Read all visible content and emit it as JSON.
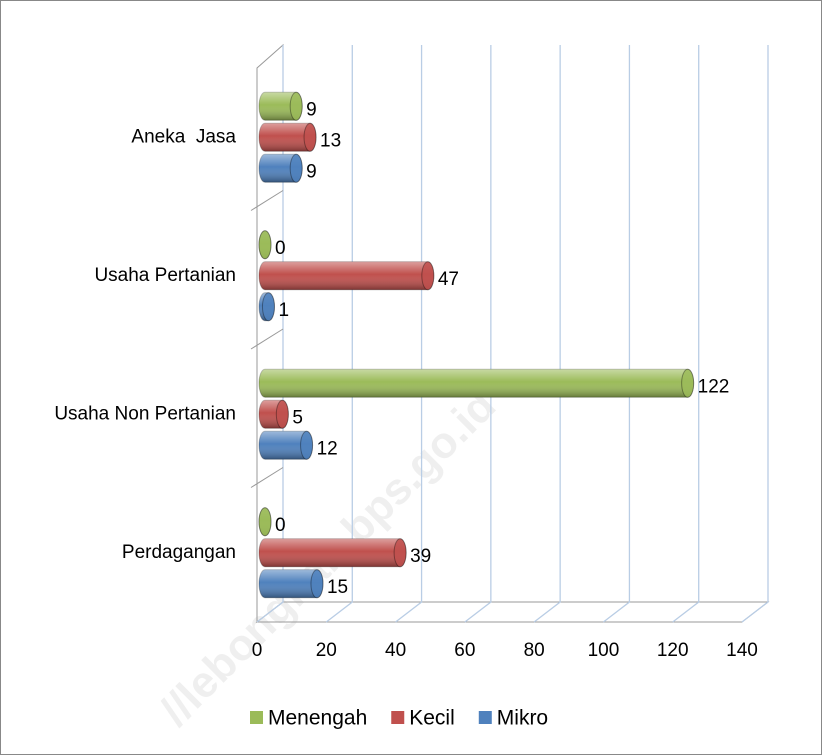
{
  "chart_data": {
    "type": "bar3d",
    "categories": [
      "Aneka  Jasa",
      "Usaha Pertanian",
      "Usaha Non Pertanian",
      "Perdagangan"
    ],
    "series": [
      {
        "name": "Menengah",
        "color": "#9bbb59",
        "values": [
          9,
          0,
          122,
          0
        ]
      },
      {
        "name": "Kecil",
        "color": "#c0504d",
        "values": [
          13,
          47,
          5,
          39
        ]
      },
      {
        "name": "Mikro",
        "color": "#4f81bd",
        "values": [
          9,
          1,
          12,
          15
        ]
      }
    ],
    "xlim": [
      0,
      140
    ],
    "xticks": [
      0,
      20,
      40,
      60,
      80,
      100,
      120,
      140
    ],
    "grid": true,
    "legend": "bottom",
    "watermark": "//lebongkab.bps.go.id"
  }
}
